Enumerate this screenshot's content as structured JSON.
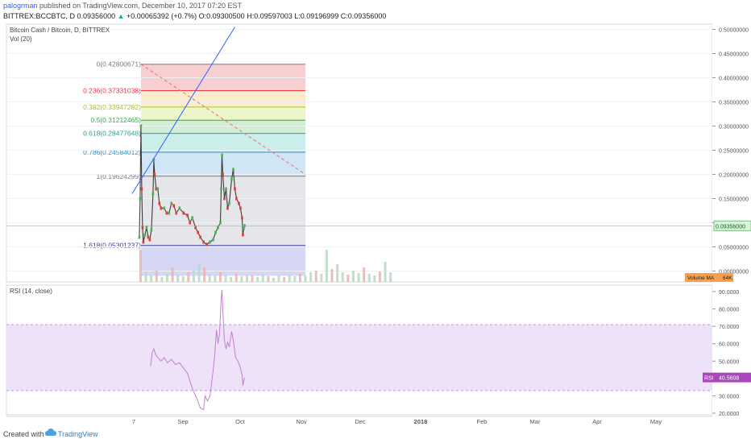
{
  "header": {
    "user": "palogrman",
    "published": "published on TradingView.com, December 10, 2017 07:20 EST",
    "symbol": "BITTREX:BCCBTC, D",
    "last": "0.09356000",
    "change_arrow": "▲",
    "change": "+0.00065392 (+0.7%)",
    "ohlc": "O:0.09300500 H:0.09597003 L:0.09196999 C:0.09356000"
  },
  "footer": {
    "created_with": "Created with",
    "brand": "TradingView",
    "logo_icon": "tradingview-cloud-icon"
  },
  "chart_data": [
    {
      "type": "candlestick",
      "title": "Bitcoin Cash / Bitcoin, D, BITTREX",
      "volume_label": "Vol (20)",
      "volume_ma_label": "Volume MA",
      "volume_ma_value": "64K",
      "last_price_label": "0.09356000",
      "ylim": [
        -0.01,
        0.51
      ],
      "y_ticks": [
        "0.50000000",
        "0.45000000",
        "0.40000000",
        "0.35000000",
        "0.30000000",
        "0.25000000",
        "0.20000000",
        "0.15000000",
        "0.10000000",
        "0.05000000",
        "0.00000000"
      ],
      "x_ticks": [
        "7",
        "Sep",
        "Oct",
        "Nov",
        "Dec",
        "2018",
        "Feb",
        "Mar",
        "Apr",
        "May"
      ],
      "fib_levels": [
        {
          "ratio": "0",
          "value": 0.42800671,
          "label": "0(0.42800671)",
          "color": "#787b86"
        },
        {
          "ratio": "0.236",
          "value": 0.37331038,
          "label": "0.236(0.37331038)",
          "color": "#f23645"
        },
        {
          "ratio": "0.382",
          "value": 0.33947282,
          "label": "0.382(0.33947282)",
          "color": "#a8c23a"
        },
        {
          "ratio": "0.5",
          "value": 0.31212465,
          "label": "0.5(0.31212465)",
          "color": "#3aaa45"
        },
        {
          "ratio": "0.618",
          "value": 0.28477648,
          "label": "0.618(0.28477648)",
          "color": "#2aa39a"
        },
        {
          "ratio": "0.786",
          "value": 0.24584012,
          "label": "0.786(0.24584012)",
          "color": "#2b8fc2"
        },
        {
          "ratio": "1",
          "value": 0.19624299,
          "label": "1(0.19624299)",
          "color": "#787b86"
        },
        {
          "ratio": "1.618",
          "value": 0.05301237,
          "label": "1.618(0.05301237)",
          "color": "#3c3cb0"
        }
      ],
      "fib_zone_colors": [
        "#f7c7c9",
        "#fbe8c4",
        "#eaf4c0",
        "#c9eccc",
        "#c3ebe6",
        "#c9e2f3",
        "#e1e2e6",
        "#cfd0f3",
        "#f7c7c9"
      ],
      "price_series": [
        [
          "2017-08-01",
          0.07
        ],
        [
          "2017-08-02",
          0.15
        ],
        [
          "2017-08-03",
          0.3
        ],
        [
          "2017-08-04",
          0.17
        ],
        [
          "2017-08-05",
          0.09
        ],
        [
          "2017-08-06",
          0.06
        ],
        [
          "2017-08-08",
          0.075
        ],
        [
          "2017-08-10",
          0.09
        ],
        [
          "2017-08-12",
          0.07
        ],
        [
          "2017-08-14",
          0.065
        ],
        [
          "2017-08-16",
          0.085
        ],
        [
          "2017-08-18",
          0.16
        ],
        [
          "2017-08-19",
          0.23
        ],
        [
          "2017-08-20",
          0.2
        ],
        [
          "2017-08-22",
          0.17
        ],
        [
          "2017-08-24",
          0.17
        ],
        [
          "2017-08-26",
          0.14
        ],
        [
          "2017-08-28",
          0.13
        ],
        [
          "2017-09-01",
          0.13
        ],
        [
          "2017-09-04",
          0.12
        ],
        [
          "2017-09-07",
          0.12
        ],
        [
          "2017-09-10",
          0.14
        ],
        [
          "2017-09-13",
          0.135
        ],
        [
          "2017-09-16",
          0.12
        ],
        [
          "2017-09-20",
          0.13
        ],
        [
          "2017-09-25",
          0.12
        ],
        [
          "2017-09-30",
          0.115
        ],
        [
          "2017-10-03",
          0.1
        ],
        [
          "2017-10-06",
          0.11
        ],
        [
          "2017-10-10",
          0.09
        ],
        [
          "2017-10-13",
          0.08
        ],
        [
          "2017-10-16",
          0.07
        ],
        [
          "2017-10-20",
          0.06
        ],
        [
          "2017-10-24",
          0.055
        ],
        [
          "2017-10-28",
          0.06
        ],
        [
          "2017-11-01",
          0.065
        ],
        [
          "2017-11-04",
          0.08
        ],
        [
          "2017-11-07",
          0.09
        ],
        [
          "2017-11-10",
          0.1
        ],
        [
          "2017-11-11",
          0.17
        ],
        [
          "2017-11-12",
          0.24
        ],
        [
          "2017-11-13",
          0.2
        ],
        [
          "2017-11-15",
          0.15
        ],
        [
          "2017-11-17",
          0.17
        ],
        [
          "2017-11-19",
          0.13
        ],
        [
          "2017-11-21",
          0.14
        ],
        [
          "2017-11-24",
          0.19
        ],
        [
          "2017-11-26",
          0.21
        ],
        [
          "2017-11-28",
          0.17
        ],
        [
          "2017-11-30",
          0.15
        ],
        [
          "2017-12-03",
          0.14
        ],
        [
          "2017-12-05",
          0.13
        ],
        [
          "2017-12-07",
          0.11
        ],
        [
          "2017-12-08",
          0.075
        ],
        [
          "2017-12-09",
          0.088
        ],
        [
          "2017-12-10",
          0.0936
        ]
      ],
      "trendline_start": [
        "2017-07-23",
        0.16
      ],
      "trendline_end": [
        "2017-11-28",
        0.505
      ],
      "dashed_trendline_start": [
        "2017-08-03",
        0.428
      ],
      "dashed_trendline_end": [
        "2018-02-24",
        0.2
      ]
    },
    {
      "type": "line",
      "title": "RSI (14, close)",
      "ylim": [
        15,
        95
      ],
      "y_ticks": [
        "90.0000",
        "80.0000",
        "70.0000",
        "60.0000",
        "50.0000",
        "40.0000",
        "30.0000",
        "20.0000"
      ],
      "bands": [
        30,
        70
      ],
      "current_label": "RSI",
      "current_value": "40.5608",
      "series": [
        [
          "2017-08-15",
          47
        ],
        [
          "2017-08-17",
          55
        ],
        [
          "2017-08-19",
          57
        ],
        [
          "2017-08-21",
          54
        ],
        [
          "2017-08-24",
          52
        ],
        [
          "2017-08-28",
          50
        ],
        [
          "2017-09-01",
          52
        ],
        [
          "2017-09-05",
          49
        ],
        [
          "2017-09-10",
          51
        ],
        [
          "2017-09-15",
          48
        ],
        [
          "2017-09-20",
          49
        ],
        [
          "2017-09-25",
          46
        ],
        [
          "2017-09-30",
          43
        ],
        [
          "2017-10-04",
          37
        ],
        [
          "2017-10-08",
          32
        ],
        [
          "2017-10-12",
          28
        ],
        [
          "2017-10-16",
          23
        ],
        [
          "2017-10-20",
          22
        ],
        [
          "2017-10-22",
          30
        ],
        [
          "2017-10-25",
          27
        ],
        [
          "2017-10-28",
          30
        ],
        [
          "2017-11-01",
          45
        ],
        [
          "2017-11-03",
          54
        ],
        [
          "2017-11-05",
          68
        ],
        [
          "2017-11-07",
          60
        ],
        [
          "2017-11-09",
          66
        ],
        [
          "2017-11-11",
          86
        ],
        [
          "2017-11-12",
          91
        ],
        [
          "2017-11-13",
          79
        ],
        [
          "2017-11-15",
          62
        ],
        [
          "2017-11-17",
          57
        ],
        [
          "2017-11-19",
          61
        ],
        [
          "2017-11-21",
          58
        ],
        [
          "2017-11-24",
          67
        ],
        [
          "2017-11-26",
          62
        ],
        [
          "2017-11-29",
          52
        ],
        [
          "2017-12-02",
          50
        ],
        [
          "2017-12-05",
          46
        ],
        [
          "2017-12-07",
          42
        ],
        [
          "2017-12-08",
          36
        ],
        [
          "2017-12-10",
          40.5
        ]
      ]
    }
  ]
}
